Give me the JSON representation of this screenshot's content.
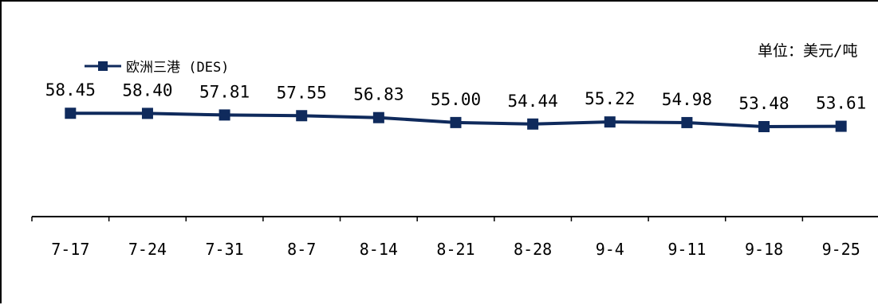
{
  "chart_data": {
    "type": "line",
    "categories": [
      "7-17",
      "7-24",
      "7-31",
      "8-7",
      "8-14",
      "8-21",
      "8-28",
      "9-4",
      "9-11",
      "9-18",
      "9-25"
    ],
    "series": [
      {
        "name": "欧洲三港 (DES)",
        "values": [
          58.45,
          58.4,
          57.81,
          57.55,
          56.83,
          55.0,
          54.44,
          55.22,
          54.98,
          53.48,
          53.61
        ],
        "labels": [
          "58.45",
          "58.40",
          "57.81",
          "57.55",
          "56.83",
          "55.00",
          "54.44",
          "55.22",
          "54.98",
          "53.48",
          "53.61"
        ],
        "color": "#0f2a5c",
        "marker": "square"
      }
    ],
    "unit": "单位：美元/吨",
    "legend_position": "top-left",
    "ylim": [
      20,
      100
    ],
    "grid": false
  }
}
